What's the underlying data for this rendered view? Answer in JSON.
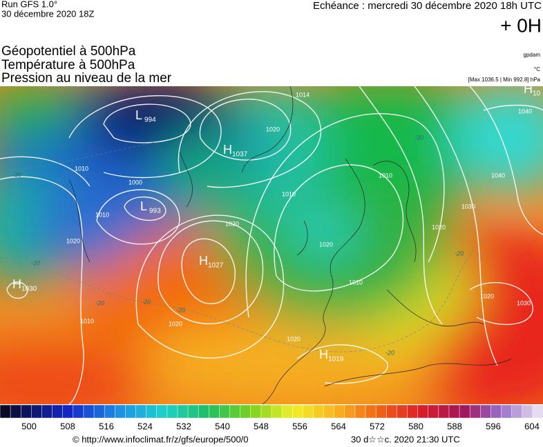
{
  "header": {
    "run": "Run GFS 1.0°",
    "date": "30 décembre 2020 18Z",
    "echeance": "Echéance : mercredi 30 décembre 2020 18h UTC",
    "offset": "+ 0H"
  },
  "titles": [
    "Géopotentiel à 500hPa",
    "Température à 500hPa",
    "Pression au niveau de la mer"
  ],
  "units": {
    "geopotential": "gpdam",
    "temperature": "°C",
    "pressure": "[Max 1036.5 | Min 992.8] hPa"
  },
  "centers": [
    {
      "type": "L",
      "value": 994
    },
    {
      "type": "H",
      "value": 1037
    },
    {
      "type": "L",
      "value": 993
    },
    {
      "type": "H",
      "value": 1027
    },
    {
      "type": "H",
      "value": 1030
    },
    {
      "type": "H",
      "value": 1019
    },
    {
      "type": "H",
      "value": 10
    }
  ],
  "isobar_labels": [
    1014,
    1020,
    1010,
    1000,
    1010,
    1020,
    1010,
    1020,
    1010,
    1010,
    1040,
    1040,
    1030,
    1020,
    1020,
    1030,
    1020,
    1010,
    1020,
    1020
  ],
  "temperature_labels": [
    -30,
    -20,
    -20,
    -20,
    -20,
    -20,
    -20,
    -30
  ],
  "colorbar": {
    "ticks": [
      500,
      508,
      516,
      524,
      532,
      540,
      548,
      556,
      564,
      572,
      580,
      588,
      596,
      604
    ]
  },
  "footer": {
    "source": "© http://www.infoclimat.fr/z/gfs/europe/500/0",
    "timestamp": "30 d☆☆c. 2020 21:30 UTC"
  }
}
